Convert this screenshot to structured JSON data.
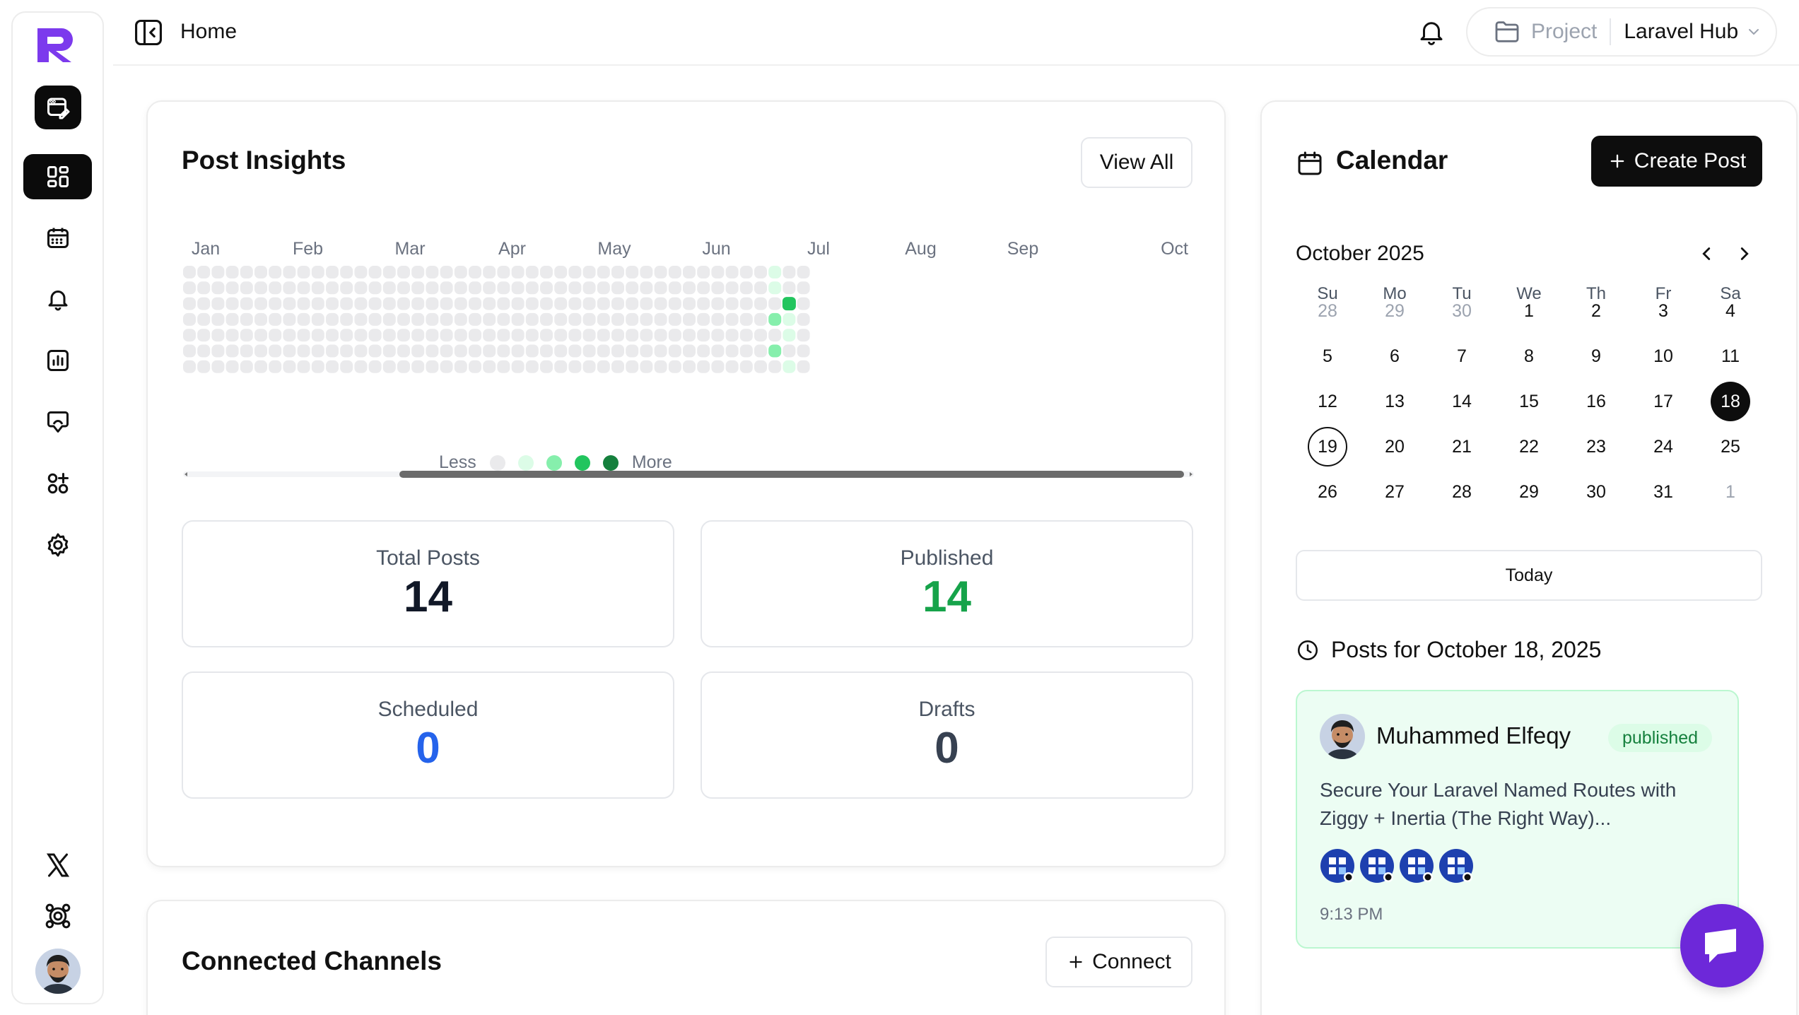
{
  "topbar": {
    "page_title": "Home",
    "project_label": "Project",
    "project_name": "Laravel Hub"
  },
  "sidebar": {
    "items": [
      {
        "icon": "dashboard-icon",
        "active": true
      },
      {
        "icon": "calendar-icon",
        "active": false
      },
      {
        "icon": "bell-icon",
        "active": false
      },
      {
        "icon": "analytics-icon",
        "active": false
      },
      {
        "icon": "inbox-icon",
        "active": false
      },
      {
        "icon": "apps-icon",
        "active": false
      },
      {
        "icon": "gear-icon",
        "active": false
      }
    ],
    "bottom": [
      "x-logo-icon",
      "network-icon"
    ]
  },
  "insights": {
    "title": "Post Insights",
    "view_all": "View All",
    "months": [
      "Jan",
      "Feb",
      "Mar",
      "Apr",
      "May",
      "Jun",
      "Jul",
      "Aug",
      "Sep",
      "Oct"
    ],
    "legend_less": "Less",
    "legend_more": "More",
    "heat_colors": [
      "#eaeaec",
      "#dcfce7",
      "#86efac",
      "#22c55e",
      "#15803d"
    ],
    "active_cells": [
      {
        "col": 41,
        "row": 0,
        "level": 1
      },
      {
        "col": 41,
        "row": 1,
        "level": 1
      },
      {
        "col": 42,
        "row": 2,
        "level": 3
      },
      {
        "col": 41,
        "row": 3,
        "level": 2
      },
      {
        "col": 42,
        "row": 3,
        "level": 1
      },
      {
        "col": 42,
        "row": 4,
        "level": 1
      },
      {
        "col": 41,
        "row": 5,
        "level": 2
      },
      {
        "col": 42,
        "row": 6,
        "level": 1
      }
    ],
    "stats": {
      "total_label": "Total Posts",
      "total_value": "14",
      "published_label": "Published",
      "published_value": "14",
      "scheduled_label": "Scheduled",
      "scheduled_value": "0",
      "drafts_label": "Drafts",
      "drafts_value": "0"
    },
    "colors": {
      "published": "#16a34a",
      "scheduled": "#2563eb",
      "drafts": "#374151"
    }
  },
  "channels": {
    "title": "Connected Channels",
    "connect": "Connect"
  },
  "calendar": {
    "title": "Calendar",
    "create_post": "Create Post",
    "month_label": "October 2025",
    "weekdays": [
      "Su",
      "Mo",
      "Tu",
      "We",
      "Th",
      "Fr",
      "Sa"
    ],
    "weeks": [
      [
        {
          "d": "28",
          "m": true
        },
        {
          "d": "29",
          "m": true
        },
        {
          "d": "30",
          "m": true
        },
        {
          "d": "1"
        },
        {
          "d": "2"
        },
        {
          "d": "3"
        },
        {
          "d": "4"
        }
      ],
      [
        {
          "d": "5"
        },
        {
          "d": "6"
        },
        {
          "d": "7"
        },
        {
          "d": "8"
        },
        {
          "d": "9"
        },
        {
          "d": "10"
        },
        {
          "d": "11"
        }
      ],
      [
        {
          "d": "12"
        },
        {
          "d": "13"
        },
        {
          "d": "14"
        },
        {
          "d": "15"
        },
        {
          "d": "16"
        },
        {
          "d": "17"
        },
        {
          "d": "18",
          "s": true
        }
      ],
      [
        {
          "d": "19",
          "t": true
        },
        {
          "d": "20"
        },
        {
          "d": "21"
        },
        {
          "d": "22"
        },
        {
          "d": "23"
        },
        {
          "d": "24"
        },
        {
          "d": "25"
        }
      ],
      [
        {
          "d": "26"
        },
        {
          "d": "27"
        },
        {
          "d": "28"
        },
        {
          "d": "29"
        },
        {
          "d": "30"
        },
        {
          "d": "31"
        },
        {
          "d": "1",
          "m": true
        }
      ]
    ],
    "today_button": "Today",
    "posts_for": "Posts for October 18, 2025",
    "post": {
      "author": "Muhammed Elfeqy",
      "status": "published",
      "text": "Secure Your Laravel Named Routes with Ziggy + Inertia (The Right Way)...",
      "time": "9:13 PM",
      "channel_count": 4
    }
  },
  "accent": "#7c3aed"
}
